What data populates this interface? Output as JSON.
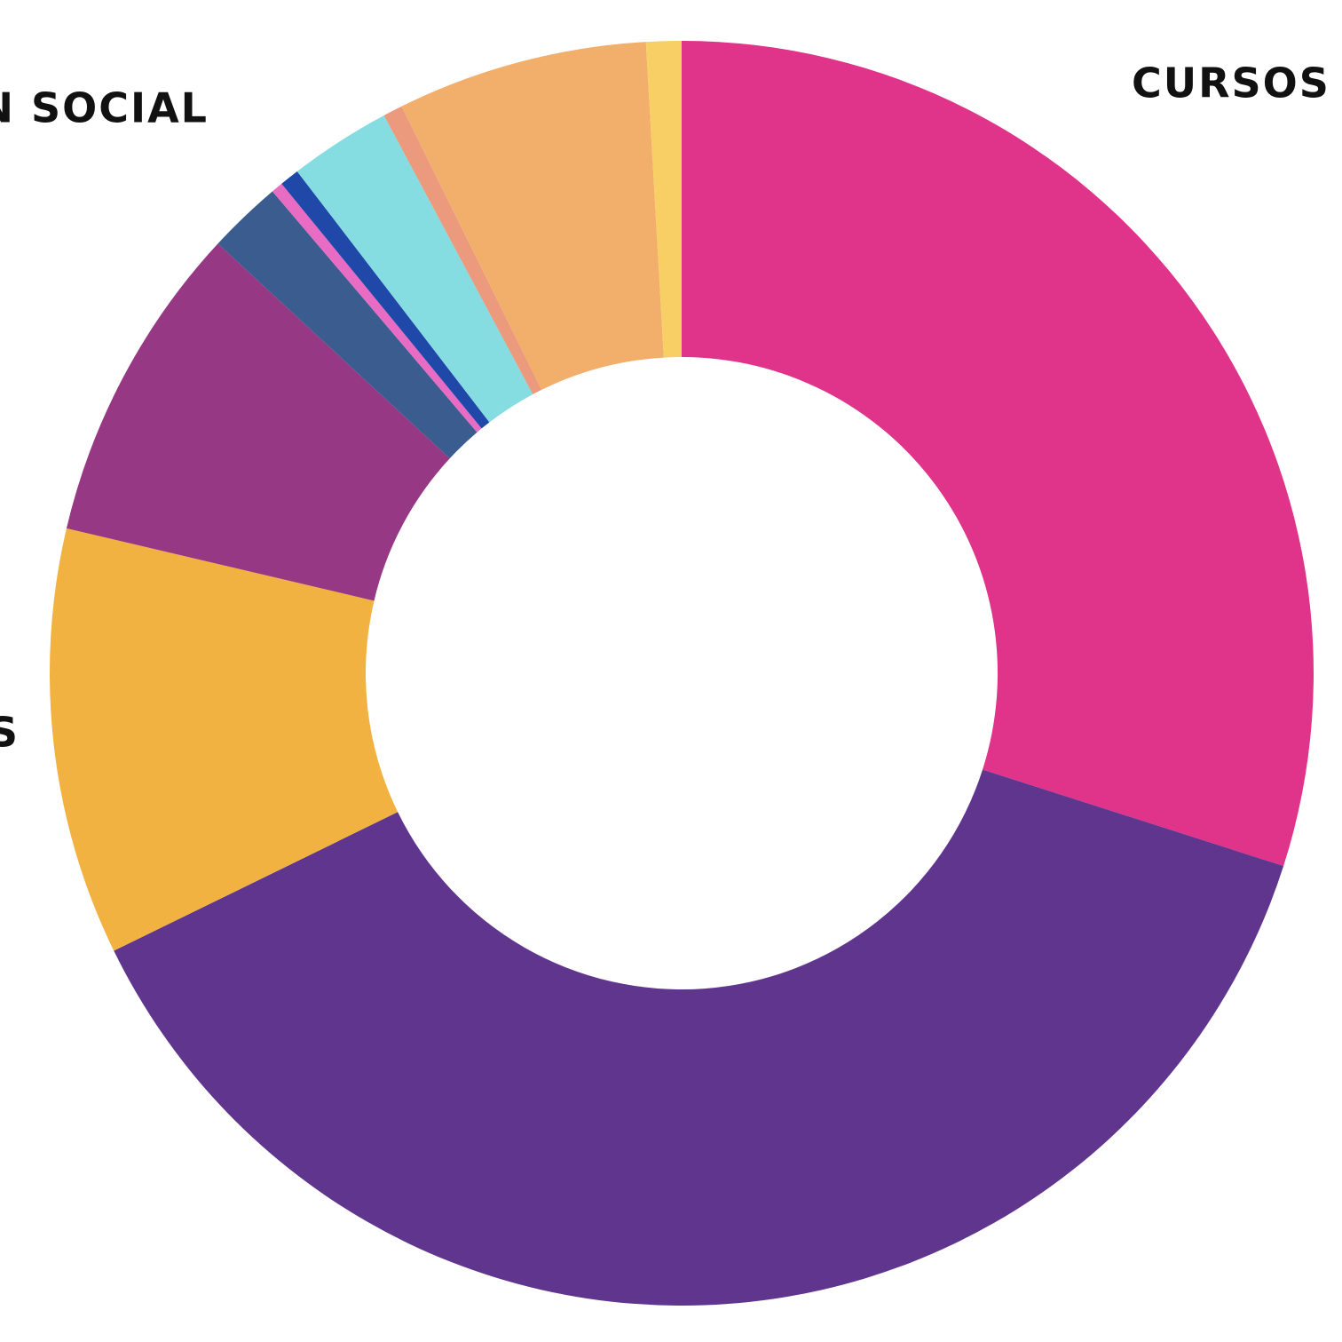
{
  "chart_data": {
    "type": "donut",
    "categories": [
      "CURSOS U",
      null,
      "S",
      null,
      "N SOCIAL",
      null,
      null,
      null,
      null,
      null,
      null
    ],
    "values": [
      29.9,
      37.8,
      10.9,
      8.2,
      1.9,
      0.3,
      0.5,
      2.6,
      0.5,
      6.4,
      0.9
    ],
    "colors": [
      "#e0338a",
      "#5f358e",
      "#f1b241",
      "#963884",
      "#3b5c8f",
      "#e86cc3",
      "#1f48a8",
      "#85dde2",
      "#ec9a7d",
      "#f2ae6b",
      "#f7cf64"
    ]
  }
}
